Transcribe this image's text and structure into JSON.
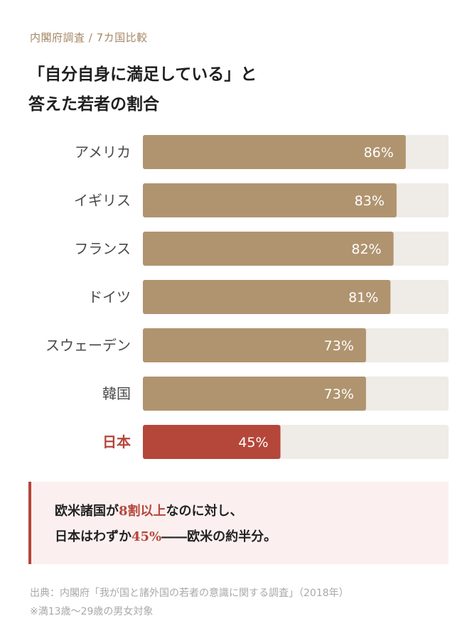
{
  "header": {
    "eyebrow": "内閣府調査 / 7カ国比較",
    "title_line1": "「自分自身に満足している」と",
    "title_line2": "答えた若者の割合"
  },
  "chart_data": {
    "type": "bar",
    "orientation": "horizontal",
    "categories": [
      "アメリカ",
      "イギリス",
      "フランス",
      "ドイツ",
      "スウェーデン",
      "韓国",
      "日本"
    ],
    "values": [
      86,
      83,
      82,
      81,
      73,
      73,
      45
    ],
    "labels": [
      "86%",
      "83%",
      "82%",
      "81%",
      "73%",
      "73%",
      "45%"
    ],
    "highlight": "日本",
    "xlim": [
      0,
      100
    ],
    "colors": {
      "bar": "#b09470",
      "highlight": "#b5463a",
      "track": "#efebe6",
      "label": "#4a4a4a",
      "highlight_label": "#b5463a"
    }
  },
  "callout": {
    "line1_a": "欧米諸国が",
    "line1_hl": "8割以上",
    "line1_b": "なのに対し、",
    "line2_a": "日本はわずか",
    "line2_hl": "45%",
    "line2_b": "――欧米の約半分。"
  },
  "source": {
    "line1": "出典：内閣府「我が国と諸外国の若者の意識に関する調査」（2018年）",
    "line2": "※満13歳〜29歳の男女対象"
  }
}
